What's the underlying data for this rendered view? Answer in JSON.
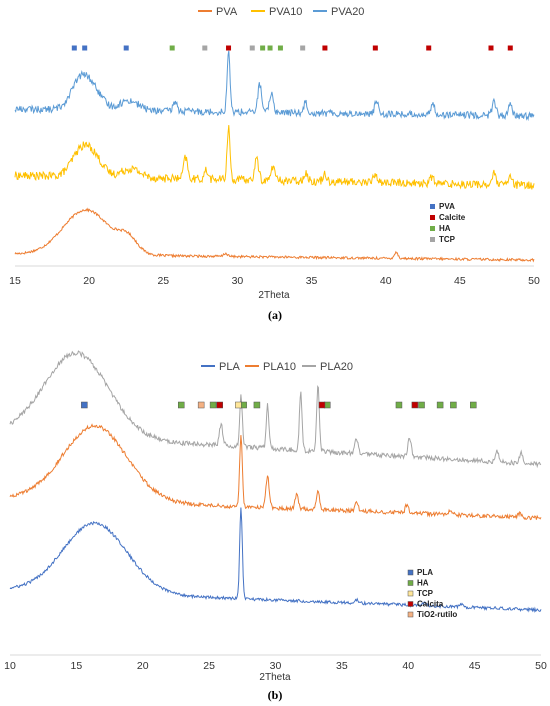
{
  "chart_data": [
    {
      "type": "line",
      "caption": "(a)",
      "xlabel": "2Theta",
      "xlim": [
        15,
        50
      ],
      "xticks": [
        15,
        20,
        25,
        30,
        35,
        40,
        45,
        50
      ],
      "grid": false,
      "legend_position": "top",
      "series": [
        {
          "name": "PVA",
          "color": "#ED7D31",
          "peaks": [
            [
              19.8,
              45
            ],
            [
              22.6,
              14
            ],
            [
              29.2,
              3
            ],
            [
              40.7,
              6
            ]
          ],
          "baseline": [
            [
              15,
              8
            ],
            [
              50,
              2
            ]
          ],
          "noise": 1.2
        },
        {
          "name": "PVA10",
          "color": "#FFC000",
          "peaks": [
            [
              19.4,
              25
            ],
            [
              20.3,
              20
            ],
            [
              22.8,
              10
            ],
            [
              26.5,
              24
            ],
            [
              27.9,
              10
            ],
            [
              29.4,
              58
            ],
            [
              31.3,
              24
            ],
            [
              32.4,
              16
            ],
            [
              34.6,
              10
            ],
            [
              35.9,
              9
            ],
            [
              39.3,
              10
            ],
            [
              43.1,
              7
            ],
            [
              47.3,
              12
            ],
            [
              48.4,
              9
            ]
          ],
          "baseline": [
            [
              15,
              25
            ],
            [
              50,
              14
            ]
          ],
          "noise": 4.5
        },
        {
          "name": "PVA20",
          "color": "#5B9BD5",
          "peaks": [
            [
              19.4,
              28
            ],
            [
              20.3,
              16
            ],
            [
              22.7,
              10
            ],
            [
              25.8,
              10
            ],
            [
              29.4,
              60
            ],
            [
              31.5,
              28
            ],
            [
              32.3,
              20
            ],
            [
              34.6,
              11
            ],
            [
              39.4,
              14
            ],
            [
              43.2,
              11
            ],
            [
              47.3,
              14
            ],
            [
              48.4,
              10
            ]
          ],
          "baseline": [
            [
              15,
              15
            ],
            [
              50,
              8
            ]
          ],
          "noise": 3.5
        }
      ],
      "markers": [
        {
          "label": "PVA",
          "color": "#4472C4",
          "x": [
            19.0,
            19.7,
            22.5
          ]
        },
        {
          "label": "Calcite",
          "color": "#C00000",
          "x": [
            29.4,
            35.9,
            39.3,
            42.9,
            47.1,
            48.4
          ]
        },
        {
          "label": "HA",
          "color": "#70AD47",
          "x": [
            25.6,
            31.7,
            32.2,
            32.9
          ]
        },
        {
          "label": "TCP",
          "color": "#A5A5A5",
          "x": [
            27.8,
            31.0,
            34.4
          ]
        }
      ]
    },
    {
      "type": "line",
      "caption": "(b)",
      "xlabel": "2Theta",
      "xlim": [
        10,
        50
      ],
      "xticks": [
        10,
        15,
        20,
        25,
        30,
        35,
        40,
        45,
        50
      ],
      "grid": false,
      "legend_position": "top",
      "series": [
        {
          "name": "PLA",
          "color": "#4472C4",
          "peaks": [
            [
              16.4,
              70
            ],
            [
              27.4,
              90
            ],
            [
              36.1,
              3
            ],
            [
              41.2,
              3
            ],
            [
              44.0,
              3
            ]
          ],
          "baseline": [
            [
              10,
              30
            ],
            [
              50,
              10
            ]
          ],
          "noise": 1.5
        },
        {
          "name": "PLA10",
          "color": "#ED7D31",
          "peaks": [
            [
              16.4,
              75
            ],
            [
              27.4,
              72
            ],
            [
              29.4,
              32
            ],
            [
              31.6,
              14
            ],
            [
              33.2,
              18
            ],
            [
              36.1,
              8
            ],
            [
              39.9,
              8
            ],
            [
              43.2,
              5
            ],
            [
              48.4,
              4
            ]
          ],
          "baseline": [
            [
              10,
              30
            ],
            [
              50,
              10
            ]
          ],
          "noise": 2.0
        },
        {
          "name": "PLA20",
          "color": "#A5A5A5",
          "peaks": [
            [
              15.0,
              80
            ],
            [
              25.9,
              20
            ],
            [
              27.4,
              48
            ],
            [
              29.4,
              42
            ],
            [
              31.9,
              55
            ],
            [
              33.2,
              62
            ],
            [
              36.1,
              14
            ],
            [
              40.1,
              18
            ],
            [
              46.7,
              10
            ],
            [
              48.5,
              10
            ]
          ],
          "baseline": [
            [
              10,
              40
            ],
            [
              50,
              10
            ]
          ],
          "noise": 2.2
        }
      ],
      "markers": [
        {
          "label": "PLA",
          "color": "#4472C4",
          "x": [
            15.6
          ]
        },
        {
          "label": "HA",
          "color": "#70AD47",
          "x": [
            22.9,
            25.3,
            27.6,
            28.6,
            33.9,
            39.3,
            41.0,
            42.4,
            43.4,
            44.9
          ]
        },
        {
          "label": "TCP",
          "color": "#FFE699",
          "x": [
            27.2
          ]
        },
        {
          "label": "Calcita",
          "color": "#C00000",
          "x": [
            25.8,
            33.5,
            40.5
          ]
        },
        {
          "label": "TiO2-rutilo",
          "color": "#F4B183",
          "x": [
            24.4
          ]
        }
      ]
    }
  ]
}
